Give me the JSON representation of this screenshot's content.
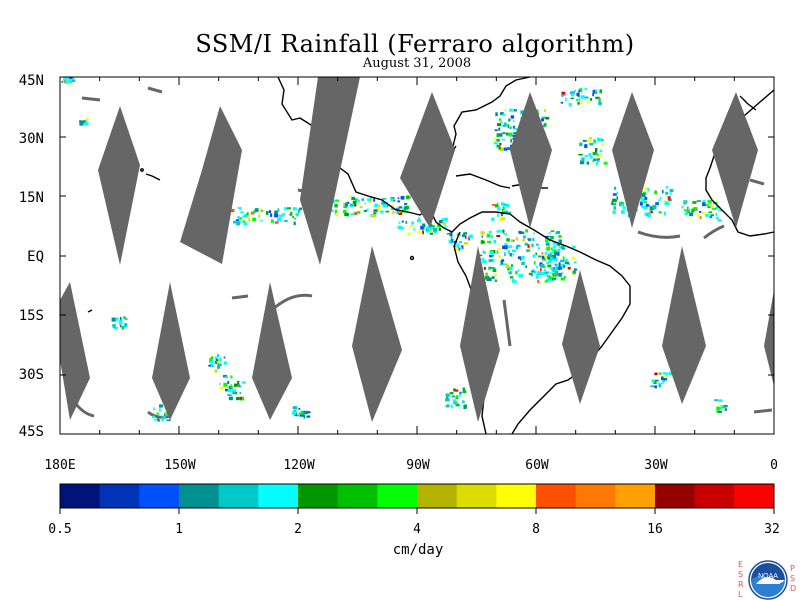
{
  "title": "SSM/I Rainfall (Ferraro algorithm)",
  "subtitle": "August 31, 2008",
  "lat_labels": [
    "45N",
    "30N",
    "15N",
    "EQ",
    "15S",
    "30S",
    "45S"
  ],
  "lon_labels": [
    "180E",
    "150W",
    "120W",
    "90W",
    "60W",
    "30W",
    "0"
  ],
  "colorbar": {
    "ticks": [
      "0.5",
      "1",
      "2",
      "4",
      "8",
      "16",
      "32"
    ],
    "units": "cm/day",
    "colors": [
      "#00137a",
      "#0033b8",
      "#0050ff",
      "#009090",
      "#00c8c8",
      "#00ffff",
      "#009600",
      "#00c000",
      "#00ff00",
      "#b4b400",
      "#dcdc00",
      "#ffff00",
      "#ff5000",
      "#ff7800",
      "#ffa000",
      "#960000",
      "#c80000",
      "#ff0000"
    ]
  },
  "swath_color": "#666666",
  "logo": {
    "text": "NOAA",
    "left_letters": [
      "E",
      "S",
      "R",
      "L"
    ],
    "right_letters": [
      "P",
      "S",
      "D"
    ]
  }
}
